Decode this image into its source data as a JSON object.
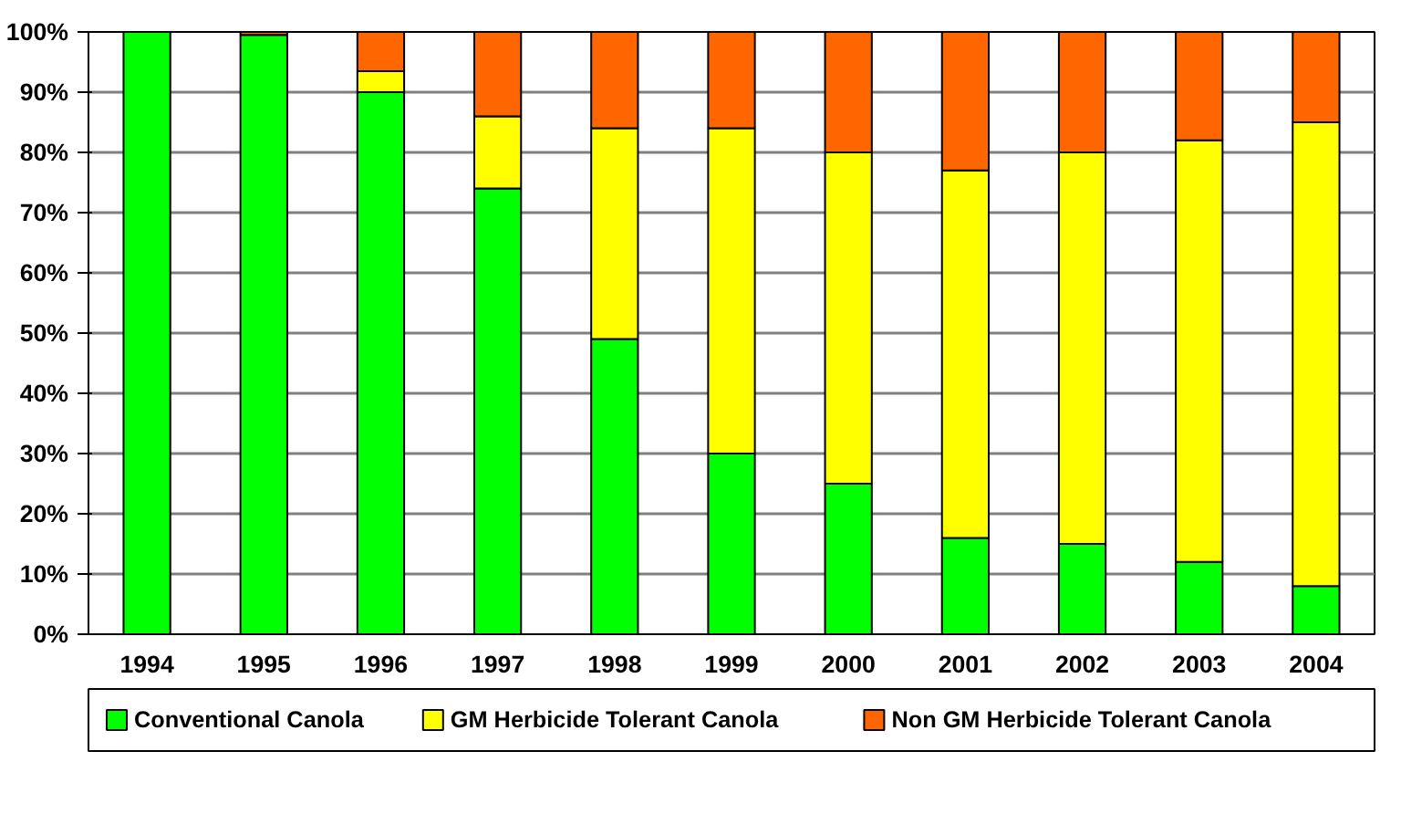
{
  "chart_data": {
    "type": "bar",
    "stacked": true,
    "categories": [
      "1994",
      "1995",
      "1996",
      "1997",
      "1998",
      "1999",
      "2000",
      "2001",
      "2002",
      "2003",
      "2004"
    ],
    "series": [
      {
        "name": "Conventional Canola",
        "color": "#00ff00",
        "values": [
          100,
          99.5,
          90,
          74,
          49,
          30,
          25,
          16,
          15,
          12,
          8
        ]
      },
      {
        "name": "GM Herbicide Tolerant Canola",
        "color": "#ffff00",
        "values": [
          0,
          0,
          3.5,
          12,
          35,
          54,
          55,
          61,
          65,
          70,
          77
        ]
      },
      {
        "name": "Non GM Herbicide Tolerant Canola",
        "color": "#ff6600",
        "values": [
          0,
          0.5,
          6.5,
          14,
          16,
          16,
          20,
          23,
          20,
          18,
          15
        ]
      }
    ],
    "ylim": [
      0,
      100
    ],
    "yticks": [
      {
        "value": 0,
        "label": "0%"
      },
      {
        "value": 10,
        "label": "10%"
      },
      {
        "value": 20,
        "label": "20%"
      },
      {
        "value": 30,
        "label": "30%"
      },
      {
        "value": 40,
        "label": "40%"
      },
      {
        "value": 50,
        "label": "50%"
      },
      {
        "value": 60,
        "label": "60%"
      },
      {
        "value": 70,
        "label": "70%"
      },
      {
        "value": 80,
        "label": "80%"
      },
      {
        "value": 90,
        "label": "90%"
      },
      {
        "value": 100,
        "label": "100%"
      }
    ],
    "grid": "y",
    "legend": "bottom"
  }
}
